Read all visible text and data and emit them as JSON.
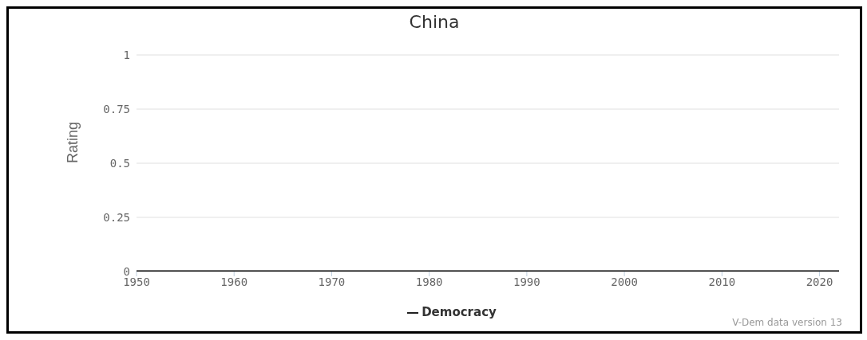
{
  "chart_data": {
    "type": "line",
    "title": "China",
    "ylabel": "Rating",
    "x": [
      1950,
      2022
    ],
    "series": [
      {
        "name": "Democracy",
        "color": "#000000",
        "values": [
          0,
          0
        ]
      }
    ],
    "xlim": [
      1950,
      2022
    ],
    "xticks": [
      1950,
      1960,
      1970,
      1980,
      1990,
      2000,
      2010,
      2020
    ],
    "ylim": [
      0,
      1
    ],
    "yticks": [
      0,
      0.25,
      0.5,
      0.75,
      1
    ],
    "grid": "y",
    "legend": "bottom",
    "marker": "none",
    "annotations": [
      "V-Dem data version 13"
    ]
  }
}
